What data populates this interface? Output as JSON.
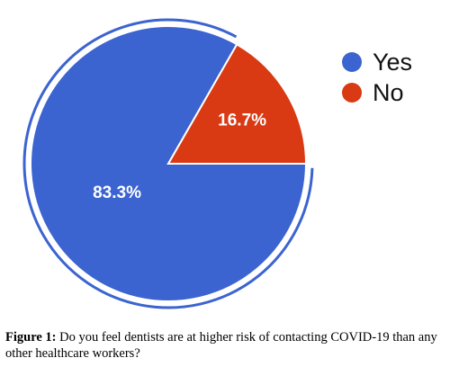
{
  "chart_data": {
    "type": "pie",
    "categories": [
      "Yes",
      "No"
    ],
    "values": [
      83.3,
      16.7
    ],
    "data_labels": [
      "83.3%",
      "16.7%"
    ],
    "colors": [
      "#3b64d0",
      "#d93a13"
    ],
    "exploded_outline": "#3b64d0",
    "legend_position": "right",
    "legend": [
      {
        "label": "Yes",
        "color": "#3b64d0"
      },
      {
        "label": "No",
        "color": "#d93a13"
      }
    ]
  },
  "caption": {
    "lead": "Figure 1:",
    "text": " Do you feel dentists are at higher risk of contacting COVID-19 than any other healthcare workers?"
  }
}
